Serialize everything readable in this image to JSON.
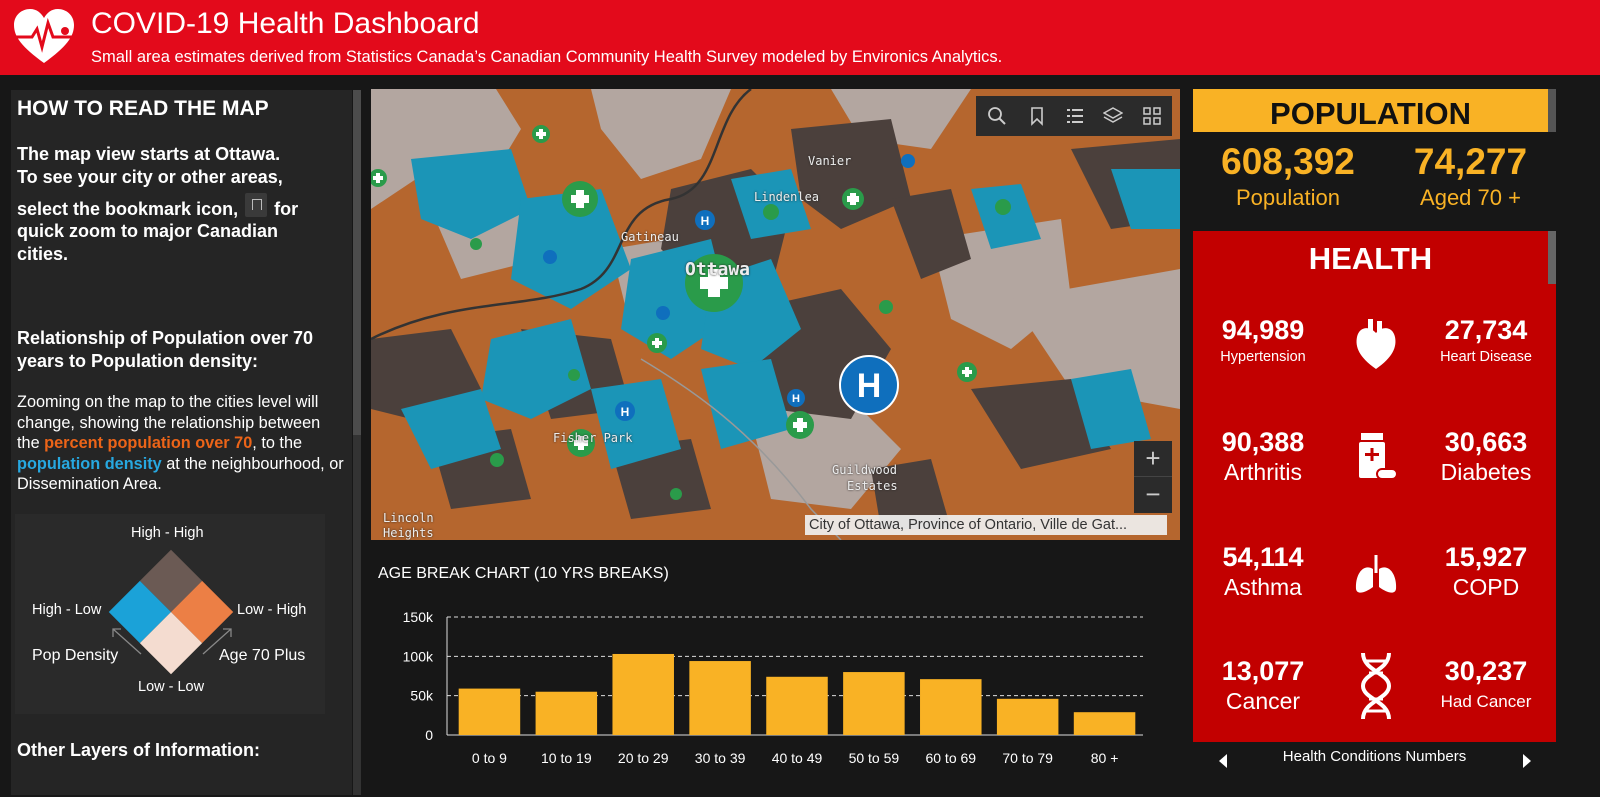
{
  "header": {
    "title": "COVID-19 Health Dashboard",
    "subtitle": "Small area estimates derived from Statistics Canada’s Canadian Community Health Survey modeled by Environics Analytics.",
    "logo_icon": "heart-pulse-icon"
  },
  "left_panel": {
    "heading": "HOW TO READ THE MAP",
    "intro_line1": "The map view starts at Ottawa.",
    "intro_line2": "To see your city or other areas,",
    "intro_line3a": "select the bookmark icon,",
    "intro_line3b": "for",
    "intro_line4": "quick zoom to major Canadian",
    "intro_line5": "cities.",
    "rel_heading_1": "Relationship of Population over 70",
    "rel_heading_2": "years to Population density:",
    "para_a": "Zooming on the map to the cities level will change, showing the relationship between the ",
    "para_orange": "percent population over 70",
    "para_b": ", to the ",
    "para_blue": "population density",
    "para_c": " at the neighbourhood, or Dissemination Area.",
    "legend": {
      "top": "High - High",
      "left": "High - Low",
      "right": "Low - High",
      "bottom": "Low - Low",
      "axis_left": "Pop Density",
      "axis_right": "Age 70 Plus",
      "colors": {
        "high_high": "#6b5a54",
        "high_low": "#1ba2d8",
        "low_high": "#ec7f45",
        "low_low": "#f4dcd0"
      }
    },
    "other_layers": "Other Layers of Information:"
  },
  "map": {
    "tools": [
      "search-icon",
      "bookmark-icon",
      "legend-list-icon",
      "layers-icon",
      "basemap-gallery-icon"
    ],
    "zoom_in": "+",
    "zoom_out": "−",
    "attribution": "City of Ottawa, Province of Ontario, Ville de Gat...",
    "labels": {
      "ottawa": "Ottawa",
      "gatineau": "Gatineau",
      "vanier": "Vanier",
      "lindenlea": "Lindenlea",
      "fisher_park": "Fisher Park",
      "guildwood_1": "Guildwood",
      "guildwood_2": "Estates",
      "lincoln_1": "Lincoln",
      "lincoln_2": "Heights"
    }
  },
  "chart_title": "AGE BREAK CHART (10 YRS BREAKS)",
  "chart_data": {
    "type": "bar",
    "title": "AGE BREAK CHART (10 YRS BREAKS)",
    "categories": [
      "0 to 9",
      "10 to 19",
      "20 to 29",
      "30 to 39",
      "40 to 49",
      "50 to 59",
      "60 to 69",
      "70 to 79",
      "80 +"
    ],
    "values": [
      59000,
      55000,
      103000,
      94000,
      74000,
      80000,
      71000,
      46000,
      29000
    ],
    "yticks": [
      "0",
      "50k",
      "100k",
      "150k"
    ],
    "ylim": [
      0,
      150000
    ],
    "bar_color": "#f9b225",
    "grid": "dashed horizontal"
  },
  "population": {
    "heading": "POPULATION",
    "total": "608,392",
    "total_label": "Population",
    "aged70": "74,277",
    "aged70_label": "Aged 70 +"
  },
  "health": {
    "heading": "HEALTH",
    "rows": [
      {
        "left_value": "94,989",
        "left_label": "Hypertension",
        "icon": "heart-icon",
        "right_value": "27,734",
        "right_label": "Heart Disease"
      },
      {
        "left_value": "90,388",
        "left_label": "Arthritis",
        "icon": "pill-bottle-icon",
        "right_value": "30,663",
        "right_label": "Diabetes"
      },
      {
        "left_value": "54,114",
        "left_label": "Asthma",
        "icon": "lungs-icon",
        "right_value": "15,927",
        "right_label": "COPD"
      },
      {
        "left_value": "13,077",
        "left_label": "Cancer",
        "icon": "dna-icon",
        "right_value": "30,237",
        "right_label": "Had Cancer"
      }
    ],
    "carousel_label": "Health Conditions Numbers"
  },
  "colors": {
    "header_red": "#e30a1b",
    "health_red": "#c20000",
    "accent_yellow": "#f9b225",
    "panel_bg": "#252525"
  }
}
